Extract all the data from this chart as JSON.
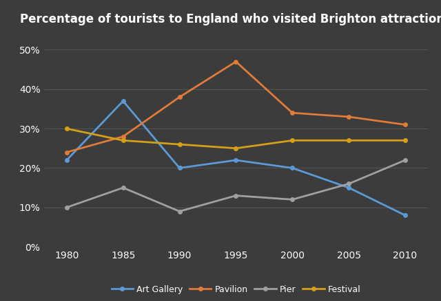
{
  "title": "Percentage of tourists to England who visited Brighton attractions",
  "x_values": [
    1980,
    1985,
    1990,
    1995,
    2000,
    2005,
    2010
  ],
  "series": {
    "Art Gallery": {
      "values": [
        22,
        37,
        20,
        22,
        20,
        15,
        8
      ],
      "color": "#5B9BD5",
      "marker": "o"
    },
    "Pavilion": {
      "values": [
        24,
        28,
        38,
        47,
        34,
        33,
        31
      ],
      "color": "#E07B39",
      "marker": "o"
    },
    "Pier": {
      "values": [
        10,
        15,
        9,
        13,
        12,
        16,
        22
      ],
      "color": "#A0A0A0",
      "marker": "o"
    },
    "Festival": {
      "values": [
        30,
        27,
        26,
        25,
        27,
        27,
        27
      ],
      "color": "#D4A017",
      "marker": "o"
    }
  },
  "ylim": [
    0,
    55
  ],
  "yticks": [
    0,
    10,
    20,
    30,
    40,
    50
  ],
  "ytick_labels": [
    "0%",
    "10%",
    "20%",
    "30%",
    "40%",
    "50%"
  ],
  "xticks": [
    1980,
    1985,
    1990,
    1995,
    2000,
    2005,
    2010
  ],
  "background_color": "#3C3C3C",
  "grid_color": "#555555",
  "text_color": "#ffffff",
  "title_fontsize": 12,
  "axis_fontsize": 10,
  "legend_fontsize": 9,
  "line_width": 2.0
}
